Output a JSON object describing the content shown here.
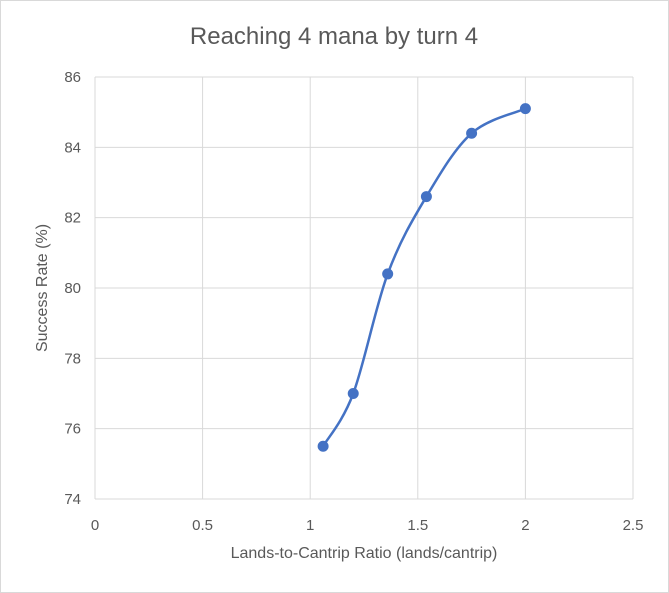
{
  "chart_data": {
    "type": "scatter",
    "title": "Reaching 4 mana by turn 4",
    "xlabel": "Lands-to-Cantrip Ratio (lands/cantrip)",
    "ylabel": "Success Rate (%)",
    "xlim": [
      0,
      2.5
    ],
    "ylim": [
      74,
      86
    ],
    "xticks": [
      "0",
      "0.5",
      "1",
      "1.5",
      "2",
      "2.5"
    ],
    "yticks": [
      "74",
      "76",
      "78",
      "80",
      "82",
      "84",
      "86"
    ],
    "grid": true,
    "smoothed_line": true,
    "series": [
      {
        "points": [
          {
            "x": 1.06,
            "y": 75.5
          },
          {
            "x": 1.2,
            "y": 77.0
          },
          {
            "x": 1.36,
            "y": 80.4
          },
          {
            "x": 1.54,
            "y": 82.6
          },
          {
            "x": 1.75,
            "y": 84.4
          },
          {
            "x": 2.0,
            "y": 85.1
          }
        ],
        "color": "#4472c4"
      }
    ]
  }
}
